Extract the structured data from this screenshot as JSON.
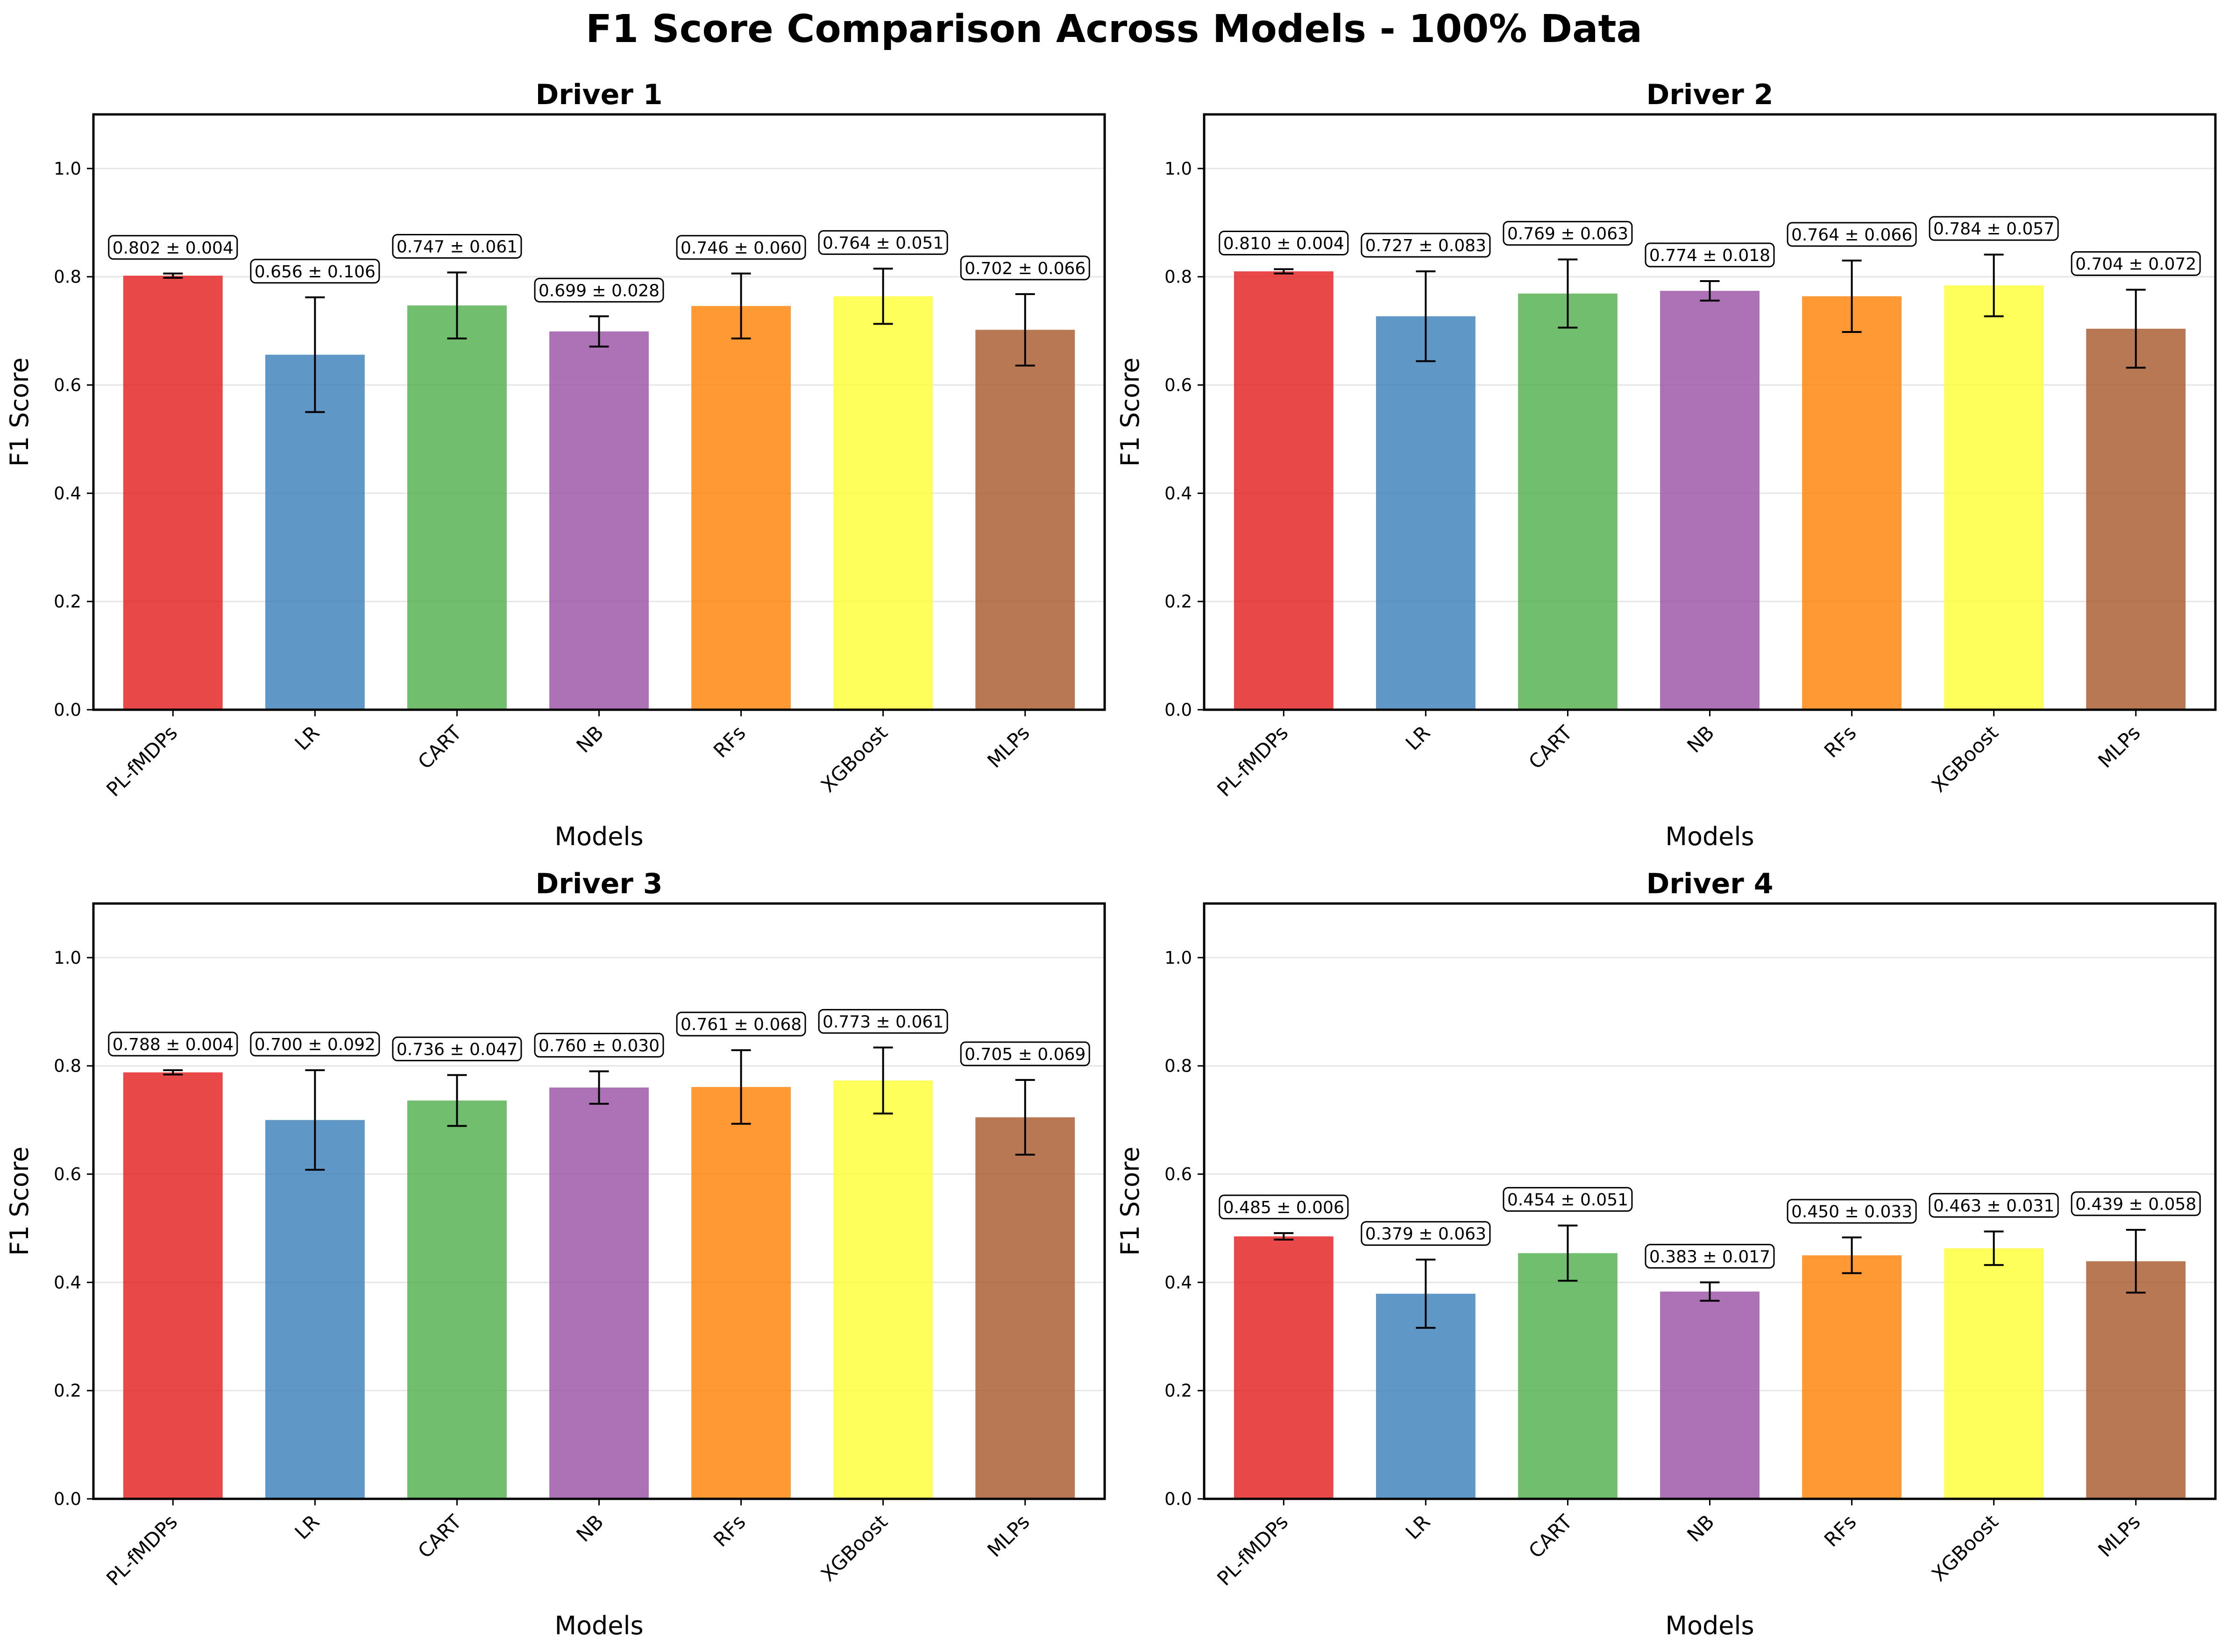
{
  "figure_title": "F1 Score Comparison Across Models - 100% Data",
  "colors": {
    "PL-fMDPs": "#e41a1c",
    "LR": "#377eb8",
    "CART": "#4daf4a",
    "NB": "#984ea3",
    "RFs": "#ff7f00",
    "XGBoost": "#ffff33",
    "MLPs": "#a65628"
  },
  "chart_data": [
    {
      "type": "bar",
      "title": "Driver 1",
      "xlabel": "Models",
      "ylabel": "F1 Score",
      "ylim": [
        0,
        1.1
      ],
      "yticks": [
        "0.0",
        "0.2",
        "0.4",
        "0.6",
        "0.8",
        "1.0"
      ],
      "grid": "y",
      "categories": [
        "PL-fMDPs",
        "LR",
        "CART",
        "NB",
        "RFs",
        "XGBoost",
        "MLPs"
      ],
      "values": [
        0.802,
        0.656,
        0.747,
        0.699,
        0.746,
        0.764,
        0.702
      ],
      "errors": [
        0.004,
        0.106,
        0.061,
        0.028,
        0.06,
        0.051,
        0.066
      ],
      "labels": [
        "0.802 ± 0.004",
        "0.656 ± 0.106",
        "0.747 ± 0.061",
        "0.699 ± 0.028",
        "0.746 ± 0.060",
        "0.764 ± 0.051",
        "0.702 ± 0.066"
      ]
    },
    {
      "type": "bar",
      "title": "Driver 2",
      "xlabel": "Models",
      "ylabel": "F1 Score",
      "ylim": [
        0,
        1.1
      ],
      "yticks": [
        "0.0",
        "0.2",
        "0.4",
        "0.6",
        "0.8",
        "1.0"
      ],
      "grid": "y",
      "categories": [
        "PL-fMDPs",
        "LR",
        "CART",
        "NB",
        "RFs",
        "XGBoost",
        "MLPs"
      ],
      "values": [
        0.81,
        0.727,
        0.769,
        0.774,
        0.764,
        0.784,
        0.704
      ],
      "errors": [
        0.004,
        0.083,
        0.063,
        0.018,
        0.066,
        0.057,
        0.072
      ],
      "labels": [
        "0.810 ± 0.004",
        "0.727 ± 0.083",
        "0.769 ± 0.063",
        "0.774 ± 0.018",
        "0.764 ± 0.066",
        "0.784 ± 0.057",
        "0.704 ± 0.072"
      ]
    },
    {
      "type": "bar",
      "title": "Driver 3",
      "xlabel": "Models",
      "ylabel": "F1 Score",
      "ylim": [
        0,
        1.1
      ],
      "yticks": [
        "0.0",
        "0.2",
        "0.4",
        "0.6",
        "0.8",
        "1.0"
      ],
      "grid": "y",
      "categories": [
        "PL-fMDPs",
        "LR",
        "CART",
        "NB",
        "RFs",
        "XGBoost",
        "MLPs"
      ],
      "values": [
        0.788,
        0.7,
        0.736,
        0.76,
        0.761,
        0.773,
        0.705
      ],
      "errors": [
        0.004,
        0.092,
        0.047,
        0.03,
        0.068,
        0.061,
        0.069
      ],
      "labels": [
        "0.788 ± 0.004",
        "0.700 ± 0.092",
        "0.736 ± 0.047",
        "0.760 ± 0.030",
        "0.761 ± 0.068",
        "0.773 ± 0.061",
        "0.705 ± 0.069"
      ]
    },
    {
      "type": "bar",
      "title": "Driver 4",
      "xlabel": "Models",
      "ylabel": "F1 Score",
      "ylim": [
        0,
        1.1
      ],
      "yticks": [
        "0.0",
        "0.2",
        "0.4",
        "0.6",
        "0.8",
        "1.0"
      ],
      "grid": "y",
      "categories": [
        "PL-fMDPs",
        "LR",
        "CART",
        "NB",
        "RFs",
        "XGBoost",
        "MLPs"
      ],
      "values": [
        0.485,
        0.379,
        0.454,
        0.383,
        0.45,
        0.463,
        0.439
      ],
      "errors": [
        0.006,
        0.063,
        0.051,
        0.017,
        0.033,
        0.031,
        0.058
      ],
      "labels": [
        "0.485 ± 0.006",
        "0.379 ± 0.063",
        "0.454 ± 0.051",
        "0.383 ± 0.017",
        "0.450 ± 0.033",
        "0.463 ± 0.031",
        "0.439 ± 0.058"
      ]
    }
  ]
}
